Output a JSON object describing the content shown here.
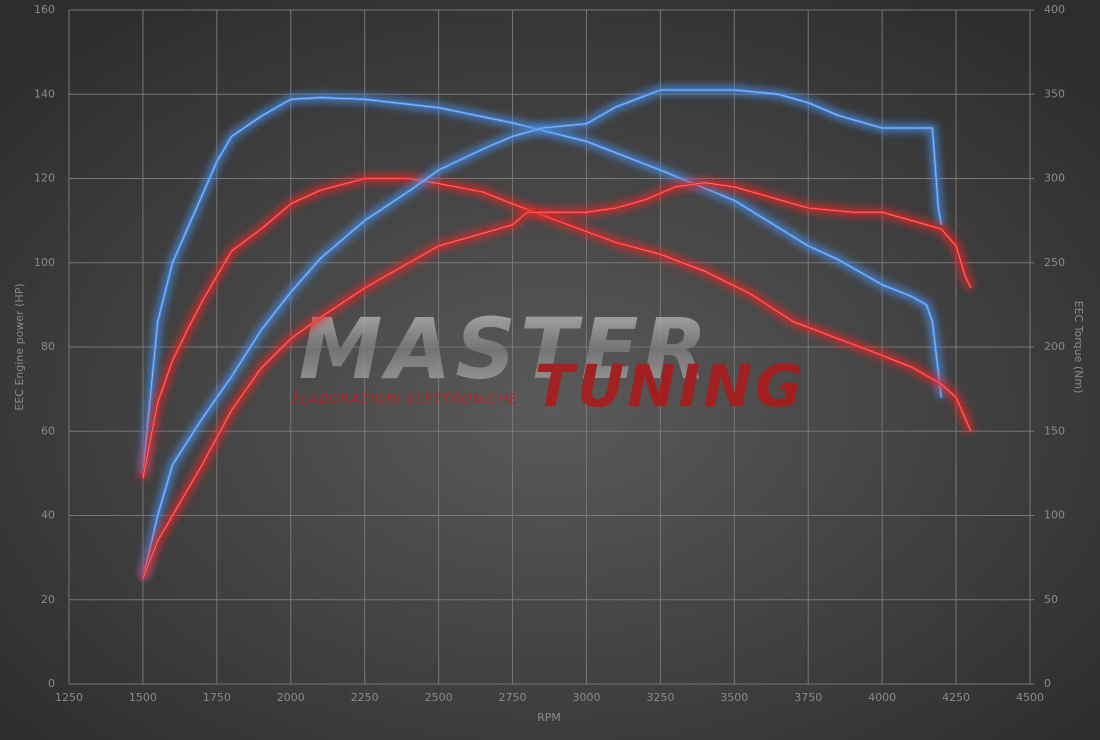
{
  "chart_data": {
    "type": "line",
    "x_label": "RPM",
    "y_label": "EEC Engine power (HP)",
    "y2_label": "EEC Torque (Nm)",
    "xlim": [
      1250,
      4500
    ],
    "xticks": [
      1250,
      1500,
      1750,
      2000,
      2250,
      2500,
      2750,
      3000,
      3250,
      3500,
      3750,
      4000,
      4250,
      4500
    ],
    "ylim": [
      0,
      160
    ],
    "yticks": [
      0,
      20,
      40,
      60,
      80,
      100,
      120,
      140,
      160
    ],
    "y2lim": [
      0,
      400
    ],
    "y2ticks": [
      0,
      50,
      100,
      150,
      200,
      250,
      300,
      350,
      400
    ],
    "grid": true,
    "watermark": {
      "top": "MASTER",
      "bottom": "TUNING",
      "tagline": "ELABORAZIONI ELETTRONICHE"
    },
    "series": [
      {
        "color": "#4a8fe8",
        "axis": "y2",
        "x": [
          1500,
          1550,
          1600,
          1650,
          1700,
          1750,
          1800,
          1900,
          2000,
          2100,
          2250,
          2500,
          2750,
          3000,
          3250,
          3500,
          3750,
          3850,
          4000,
          4100,
          4150,
          4170,
          4200
        ],
        "values": [
          125,
          215,
          250,
          270,
          290,
          310,
          325,
          337,
          347,
          348,
          347,
          342,
          333,
          322,
          305,
          287,
          260,
          252,
          237,
          230,
          225,
          215,
          170
        ]
      },
      {
        "color": "#e82828",
        "axis": "y2",
        "x": [
          1500,
          1550,
          1600,
          1650,
          1700,
          1750,
          1800,
          1900,
          2000,
          2100,
          2250,
          2400,
          2500,
          2650,
          2750,
          2900,
          3100,
          3250,
          3400,
          3550,
          3700,
          3850,
          4000,
          4100,
          4200,
          4250,
          4300
        ],
        "values": [
          122,
          167,
          192,
          210,
          227,
          242,
          257,
          270,
          285,
          293,
          300,
          300,
          297,
          292,
          285,
          275,
          262,
          255,
          245,
          232,
          215,
          205,
          195,
          188,
          178,
          170,
          150
        ]
      },
      {
        "color": "#4a8fe8",
        "x": [
          1500,
          1550,
          1600,
          1700,
          1800,
          1900,
          2000,
          2100,
          2250,
          2400,
          2500,
          2650,
          2750,
          2850,
          3000,
          3100,
          3250,
          3400,
          3500,
          3650,
          3750,
          3850,
          4000,
          4170,
          4190,
          4200
        ],
        "values": [
          25,
          40,
          52,
          63,
          73,
          84,
          93,
          101,
          110,
          117,
          122,
          127,
          130,
          132,
          133,
          137,
          141,
          141,
          141,
          140,
          138,
          135,
          132,
          132,
          113,
          109
        ]
      },
      {
        "color": "#e82828",
        "x": [
          1500,
          1550,
          1600,
          1700,
          1800,
          1900,
          2000,
          2100,
          2250,
          2400,
          2500,
          2650,
          2750,
          2800,
          2900,
          3000,
          3100,
          3200,
          3300,
          3400,
          3500,
          3650,
          3750,
          3900,
          4000,
          4100,
          4200,
          4250,
          4280,
          4300
        ],
        "values": [
          25,
          34,
          40,
          52,
          65,
          75,
          82,
          87,
          94,
          100,
          104,
          107,
          109,
          112,
          112,
          112,
          113,
          115,
          118,
          119,
          118,
          115,
          113,
          112,
          112,
          110,
          108,
          104,
          97,
          94
        ]
      }
    ]
  }
}
